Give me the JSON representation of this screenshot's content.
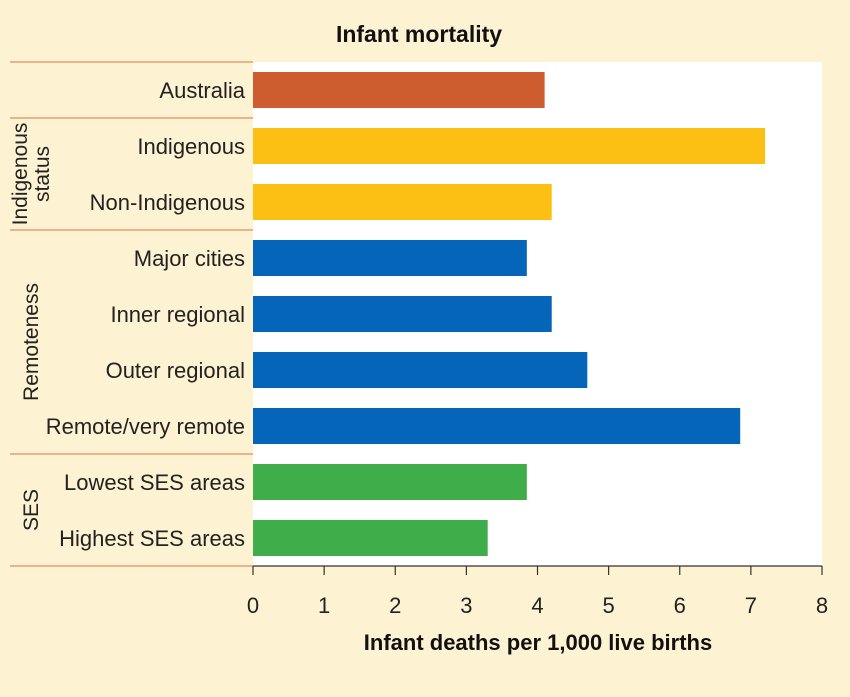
{
  "chart_data": {
    "type": "bar",
    "orientation": "horizontal",
    "title": "Infant mortality",
    "xlabel": "Infant deaths per 1,000 live births",
    "xlim": [
      0,
      8
    ],
    "xticks": [
      "0",
      "1",
      "2",
      "3",
      "4",
      "5",
      "6",
      "7",
      "8"
    ],
    "grid": false,
    "groups": [
      {
        "name": "",
        "lines": [],
        "rows": [
          0
        ]
      },
      {
        "name": "Indigenous status",
        "lines": [
          "Indigenous",
          "status"
        ],
        "rows": [
          1,
          2
        ]
      },
      {
        "name": "Remoteness",
        "lines": [
          "Remoteness"
        ],
        "rows": [
          3,
          4,
          5,
          6
        ]
      },
      {
        "name": "SES",
        "lines": [
          "SES"
        ],
        "rows": [
          7,
          8
        ]
      }
    ],
    "categories": [
      "Australia",
      "Indigenous",
      "Non-Indigenous",
      "Major cities",
      "Inner regional",
      "Outer regional",
      "Remote/very remote",
      "Lowest SES areas",
      "Highest SES areas"
    ],
    "values": [
      4.1,
      7.2,
      4.2,
      3.85,
      4.2,
      4.7,
      6.85,
      3.85,
      3.3
    ],
    "colors": [
      "#cd5d2e",
      "#fcc014",
      "#fcc014",
      "#0565b8",
      "#0565b8",
      "#0565b8",
      "#0565b8",
      "#3fad4a",
      "#3fad4a"
    ]
  }
}
